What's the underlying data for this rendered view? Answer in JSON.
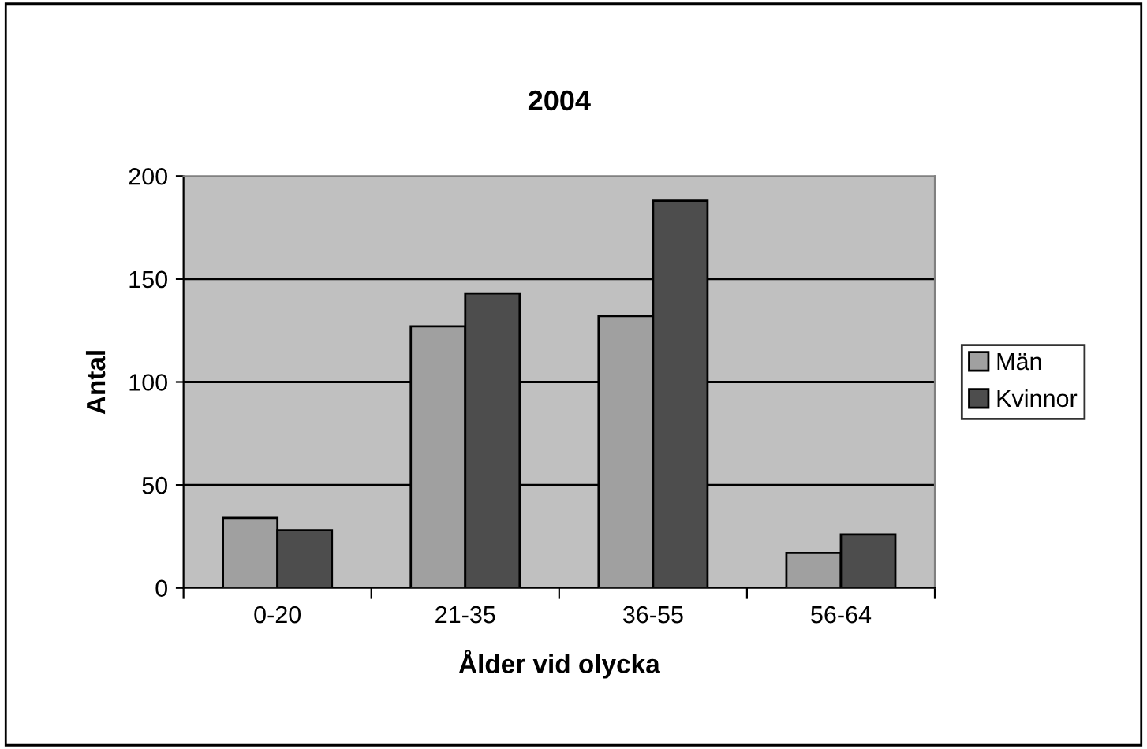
{
  "chart_data": {
    "type": "bar",
    "title": "2004",
    "xlabel": "Ålder vid olycka",
    "ylabel": "Antal",
    "categories": [
      "0-20",
      "21-35",
      "36-55",
      "56-64"
    ],
    "series": [
      {
        "name": "Män",
        "color": "#a0a0a0",
        "values": [
          34,
          127,
          132,
          17
        ]
      },
      {
        "name": "Kvinnor",
        "color": "#4d4d4d",
        "values": [
          28,
          143,
          188,
          26
        ]
      }
    ],
    "ylim": [
      0,
      200
    ],
    "yticks": [
      0,
      50,
      100,
      150,
      200
    ],
    "grid": "y",
    "legend": "right"
  }
}
